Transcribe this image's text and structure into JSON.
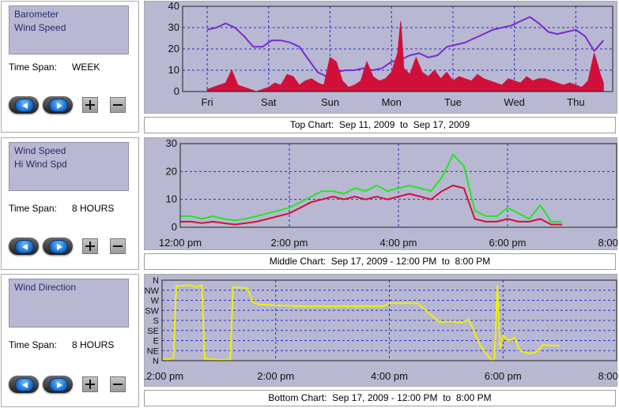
{
  "panels": [
    {
      "listbox": [
        "Barometer",
        "Wind Speed"
      ],
      "time_span_label": "Time Span:",
      "time_span_value": "WEEK",
      "caption": "Top Chart:  Sep 11, 2009  to  Sep 17, 2009"
    },
    {
      "listbox": [
        "Wind Speed",
        "Hi Wind Spd"
      ],
      "time_span_label": "Time Span:",
      "time_span_value": "8 HOURS",
      "caption": "Middle Chart:  Sep 17, 2009 - 12:00 PM  to  8:00 PM"
    },
    {
      "listbox": [
        "Wind Direction"
      ],
      "time_span_label": "Time Span:",
      "time_span_value": "8 HOURS",
      "caption": "Bottom Chart:  Sep 17, 2009 - 12:00 PM  to  8:00 PM"
    }
  ],
  "icons": {
    "prev": "arrow-left-icon",
    "next": "arrow-right-icon",
    "zoom_in": "plus-icon",
    "zoom_out": "minus-icon"
  },
  "colors": {
    "plot_bg": "#b8b8d2",
    "grid": "#2b2bd0",
    "barometer": "#7b2ad0",
    "wind_speed": "#d0103a",
    "hi_wind": "#22e622",
    "direction": "#f0f000"
  },
  "chart_data": [
    {
      "type": "area",
      "x_ticks": [
        "Fri",
        "Sat",
        "Sun",
        "Mon",
        "Tue",
        "Wed",
        "Thu"
      ],
      "ylim": [
        0,
        40
      ],
      "y_ticks": [
        "0",
        "10",
        "20",
        "30",
        "40"
      ],
      "grid": true,
      "series": [
        {
          "name": "Barometer",
          "type": "line",
          "x": [
            0,
            0.15,
            0.3,
            0.45,
            0.6,
            0.75,
            0.9,
            1.05,
            1.2,
            1.35,
            1.5,
            1.65,
            1.8,
            1.95,
            2.1,
            2.25,
            2.4,
            2.55,
            2.7,
            2.85,
            3.0,
            3.15,
            3.3,
            3.45,
            3.6,
            3.75,
            3.9,
            4.05,
            4.2,
            4.35,
            4.5,
            4.65,
            4.8,
            4.95,
            5.1,
            5.25,
            5.4,
            5.55,
            5.7,
            5.85,
            6.0,
            6.15,
            6.3,
            6.45
          ],
          "values": [
            29,
            30,
            32,
            30,
            26,
            21,
            21,
            24,
            24,
            23,
            21,
            15,
            9,
            7,
            9,
            10,
            10,
            11,
            10,
            11,
            14,
            15,
            17,
            18,
            16,
            17,
            21,
            22,
            23,
            25,
            27,
            29,
            30,
            31,
            33,
            35,
            32,
            28,
            27,
            28,
            29,
            26,
            19,
            24
          ]
        },
        {
          "name": "Wind Speed",
          "type": "area",
          "x": [
            0,
            0.1,
            0.2,
            0.3,
            0.4,
            0.5,
            0.6,
            0.7,
            0.8,
            0.9,
            1.0,
            1.1,
            1.2,
            1.3,
            1.4,
            1.5,
            1.6,
            1.7,
            1.8,
            1.9,
            2.0,
            2.1,
            2.2,
            2.3,
            2.4,
            2.5,
            2.6,
            2.7,
            2.8,
            2.9,
            3.0,
            3.1,
            3.15,
            3.2,
            3.3,
            3.4,
            3.5,
            3.6,
            3.7,
            3.8,
            3.9,
            4.0,
            4.1,
            4.2,
            4.3,
            4.4,
            4.5,
            4.6,
            4.7,
            4.8,
            4.9,
            5.0,
            5.1,
            5.2,
            5.3,
            5.4,
            5.5,
            5.6,
            5.7,
            5.8,
            5.9,
            6.0,
            6.1,
            6.2,
            6.3,
            6.4,
            6.45
          ],
          "values": [
            1,
            2,
            3,
            4,
            10,
            3,
            2,
            1,
            0,
            1,
            2,
            4,
            3,
            8,
            7,
            3,
            5,
            6,
            4,
            3,
            16,
            14,
            5,
            2,
            3,
            5,
            14,
            7,
            5,
            6,
            9,
            18,
            33,
            11,
            8,
            16,
            9,
            7,
            10,
            6,
            9,
            5,
            7,
            6,
            5,
            8,
            6,
            5,
            4,
            3,
            6,
            5,
            4,
            7,
            5,
            6,
            6,
            5,
            4,
            3,
            4,
            3,
            2,
            5,
            18,
            8,
            4
          ]
        }
      ]
    },
    {
      "type": "line",
      "x_ticks": [
        "12:00 pm",
        "2:00 pm",
        "4:00 pm",
        "6:00 pm",
        "8:00 pm"
      ],
      "ylim": [
        0,
        30
      ],
      "y_ticks": [
        "0",
        "10",
        "20",
        "30"
      ],
      "grid": true,
      "series": [
        {
          "name": "Wind Speed",
          "x": [
            0,
            0.2,
            0.4,
            0.6,
            0.8,
            1.0,
            1.2,
            1.4,
            1.6,
            1.8,
            2.0,
            2.2,
            2.4,
            2.6,
            2.8,
            3.0,
            3.2,
            3.4,
            3.6,
            3.8,
            4.0,
            4.2,
            4.4,
            4.6,
            4.8,
            5.0,
            5.2,
            5.4,
            5.6,
            5.8,
            6.0,
            6.2,
            6.4,
            6.6,
            6.8,
            7.0
          ],
          "values": [
            2,
            2,
            1.5,
            2,
            1.5,
            1,
            1.5,
            2,
            3,
            4,
            5,
            7,
            9,
            10,
            11,
            10,
            11,
            10,
            11,
            10,
            11,
            12,
            11,
            10,
            13,
            15,
            14,
            3,
            2,
            2,
            3,
            2,
            2,
            3,
            1,
            1
          ]
        },
        {
          "name": "Hi Wind Spd",
          "x": [
            0,
            0.2,
            0.4,
            0.6,
            0.8,
            1.0,
            1.2,
            1.4,
            1.6,
            1.8,
            2.0,
            2.2,
            2.4,
            2.6,
            2.8,
            3.0,
            3.2,
            3.4,
            3.6,
            3.8,
            4.0,
            4.2,
            4.4,
            4.6,
            4.8,
            5.0,
            5.2,
            5.4,
            5.6,
            5.8,
            6.0,
            6.2,
            6.4,
            6.6,
            6.8,
            7.0
          ],
          "values": [
            4,
            4,
            3,
            4,
            3,
            2.5,
            3,
            4,
            5,
            6,
            7,
            9,
            11,
            13,
            13,
            12,
            14,
            13,
            15,
            13,
            14,
            15,
            14,
            13,
            18,
            26,
            22,
            6,
            4,
            4,
            7,
            5,
            3,
            8,
            2,
            2
          ]
        }
      ]
    },
    {
      "type": "line",
      "x_ticks": [
        "12:00 pm",
        "2:00 pm",
        "4:00 pm",
        "6:00 pm",
        "8:00 pm"
      ],
      "y_ticks": [
        "N",
        "NE",
        "E",
        "SE",
        "S",
        "SW",
        "W",
        "NW",
        "N"
      ],
      "grid": true,
      "series": [
        {
          "name": "Wind Direction",
          "x": [
            0,
            0.1,
            0.2,
            0.25,
            0.5,
            0.6,
            0.7,
            0.75,
            1.0,
            1.1,
            1.2,
            1.25,
            1.5,
            1.6,
            1.7,
            2.0,
            2.5,
            3.0,
            3.5,
            3.9,
            4.0,
            4.5,
            4.8,
            4.9,
            5.0,
            5.3,
            5.4,
            5.6,
            5.8,
            5.85,
            5.9,
            5.95,
            6.0,
            6.1,
            6.2,
            6.3,
            6.4,
            6.5,
            6.6,
            6.7,
            6.8,
            7.0
          ],
          "values": [
            0.2,
            0.1,
            0.3,
            7.4,
            7.5,
            7.3,
            7.5,
            0.2,
            0.1,
            0.1,
            0.1,
            7.3,
            7.2,
            5.8,
            5.6,
            5.5,
            5.4,
            5.4,
            5.4,
            5.4,
            5.7,
            5.7,
            4.2,
            3.8,
            3.9,
            3.8,
            4.1,
            1.5,
            0.0,
            0.2,
            7.4,
            1.2,
            2.5,
            2.0,
            2.3,
            1.0,
            0.8,
            0.7,
            0.9,
            1.6,
            1.5,
            1.5
          ]
        }
      ]
    }
  ]
}
